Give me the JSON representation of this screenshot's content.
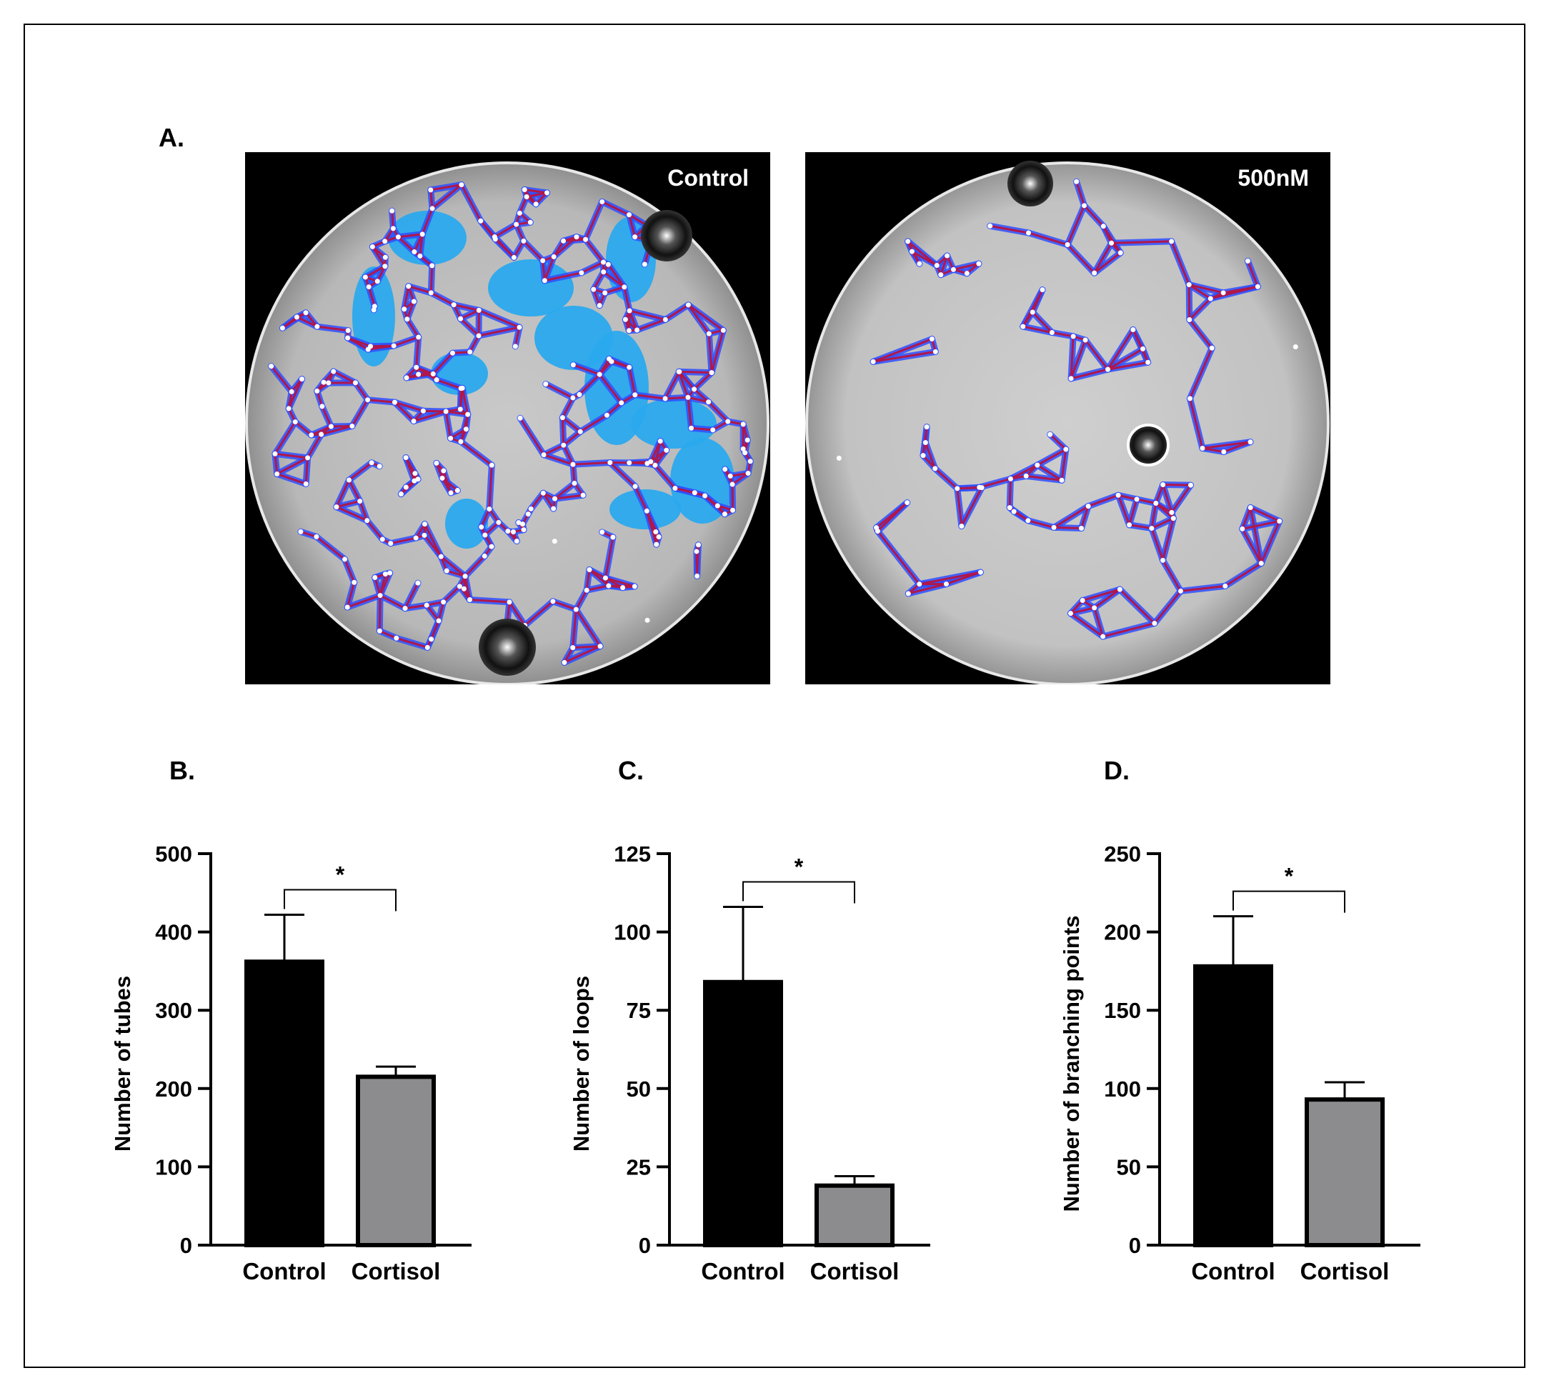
{
  "labels": {
    "a": "A.",
    "b": "B.",
    "c": "C.",
    "d": "D."
  },
  "images": [
    {
      "tag": "Control"
    },
    {
      "tag": "500nM"
    }
  ],
  "colors": {
    "control_bar": "#000000",
    "cortisol_bar": "#8c8c8e",
    "tube": "#b0174a",
    "cell": "#2f4fff",
    "cluster": "#2aa9ee"
  },
  "chart_data": [
    {
      "type": "bar",
      "categories": [
        "Control",
        "Cortisol"
      ],
      "values": [
        362,
        215
      ],
      "errors": [
        60,
        13
      ],
      "ylabel": "Number of tubes",
      "ylim": [
        0,
        500
      ],
      "yticks": [
        "0",
        "100",
        "200",
        "300",
        "400",
        "500"
      ],
      "significance": "*"
    },
    {
      "type": "bar",
      "categories": [
        "Control",
        "Cortisol"
      ],
      "values": [
        84,
        19
      ],
      "errors": [
        24,
        3
      ],
      "ylabel": "Number of loops",
      "ylim": [
        0,
        125
      ],
      "yticks": [
        "0",
        "25",
        "50",
        "75",
        "100",
        "125"
      ],
      "significance": "*"
    },
    {
      "type": "bar",
      "categories": [
        "Control",
        "Cortisol"
      ],
      "values": [
        178,
        93
      ],
      "errors": [
        32,
        11
      ],
      "ylabel": "Number of branching points",
      "ylim": [
        0,
        250
      ],
      "yticks": [
        "0",
        "50",
        "100",
        "150",
        "200",
        "250"
      ],
      "significance": "*"
    }
  ]
}
